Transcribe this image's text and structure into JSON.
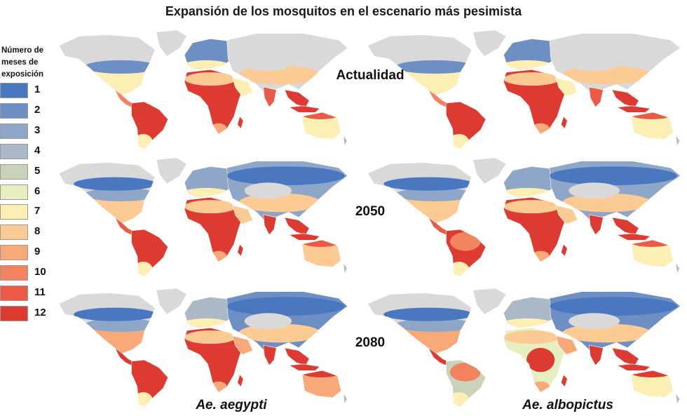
{
  "title": "Expansión de los mosquitos en el escenario más pesimista",
  "legend": {
    "title": "Número de meses de exposición",
    "items": [
      {
        "label": "1",
        "color": "#4a78c0"
      },
      {
        "label": "2",
        "color": "#6d8fc4"
      },
      {
        "label": "3",
        "color": "#8ea6c8"
      },
      {
        "label": "4",
        "color": "#aab8c8"
      },
      {
        "label": "5",
        "color": "#c9d3b9"
      },
      {
        "label": "6",
        "color": "#e6efbf"
      },
      {
        "label": "7",
        "color": "#fdeeb3"
      },
      {
        "label": "8",
        "color": "#fccb94"
      },
      {
        "label": "9",
        "color": "#f9a878"
      },
      {
        "label": "10",
        "color": "#f3825e"
      },
      {
        "label": "11",
        "color": "#ea5a47"
      },
      {
        "label": "12",
        "color": "#dd3a32"
      }
    ]
  },
  "periods": [
    "Actualidad",
    "2050",
    "2080"
  ],
  "species": [
    "Ae. aegypti",
    "Ae. albopictus"
  ],
  "colors": {
    "land_gray": "#d9d9d9",
    "text": "#111111"
  }
}
